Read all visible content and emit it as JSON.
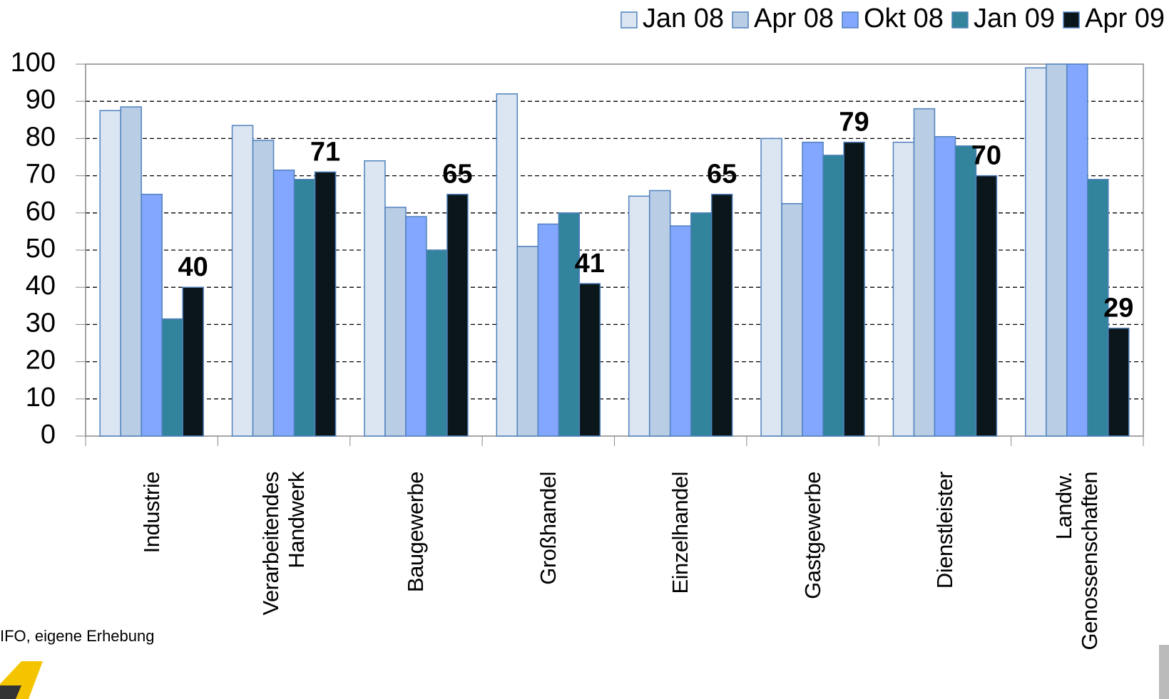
{
  "chart_data": {
    "type": "bar",
    "categories": [
      "Industrie",
      "Verarbeitendes Handwerk",
      "Baugewerbe",
      "Großhandel",
      "Einzelhandel",
      "Gastgewerbe",
      "Dienstleister",
      "Landw. Genossenschaften"
    ],
    "series": [
      {
        "name": "Jan 08",
        "color": "#dce6f2",
        "values": [
          87.5,
          83.5,
          74,
          92,
          64.5,
          80,
          79,
          99
        ]
      },
      {
        "name": "Apr 08",
        "color": "#b9cde5",
        "values": [
          88.5,
          79.5,
          61.5,
          51,
          66,
          62.5,
          88,
          100
        ]
      },
      {
        "name": "Okt 08",
        "color": "#83a6ff",
        "values": [
          65,
          71.5,
          59,
          57,
          56.5,
          79,
          80.5,
          100
        ]
      },
      {
        "name": "Jan 09",
        "color": "#31849b",
        "values": [
          31.5,
          69,
          50,
          60,
          60,
          75.5,
          78,
          69
        ]
      },
      {
        "name": "Apr 09",
        "color": "#0b161a",
        "values": [
          40,
          71,
          65,
          41,
          65,
          79,
          70,
          29
        ],
        "show_labels": true
      }
    ],
    "ylim": [
      0,
      100
    ],
    "yticks": [
      0,
      10,
      20,
      30,
      40,
      50,
      60,
      70,
      80,
      90,
      100
    ],
    "grid": true,
    "legend": "top-right",
    "source": "IFO, eigene Erhebung"
  }
}
